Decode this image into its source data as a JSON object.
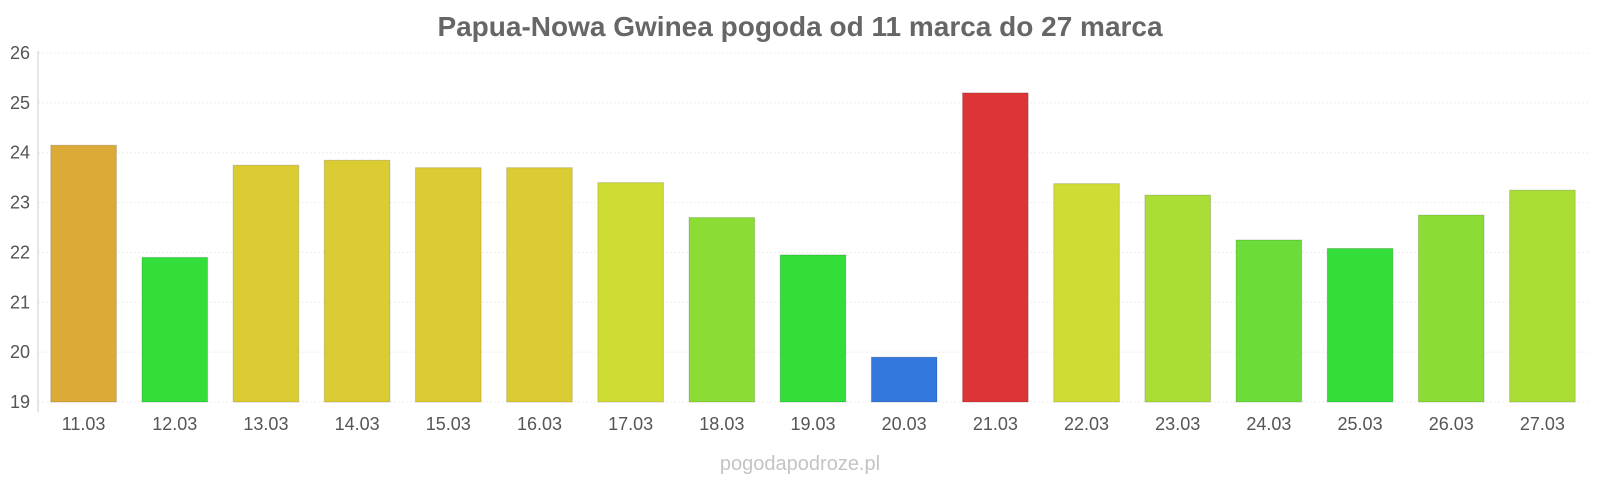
{
  "chart_data": {
    "type": "bar",
    "title": "Papua-Nowa Gwinea pogoda od 11 marca do 27 marca",
    "xlabel": "",
    "ylabel": "",
    "categories": [
      "11.03",
      "12.03",
      "13.03",
      "14.03",
      "15.03",
      "16.03",
      "17.03",
      "18.03",
      "19.03",
      "20.03",
      "21.03",
      "22.03",
      "23.03",
      "24.03",
      "25.03",
      "26.03",
      "27.03"
    ],
    "values": [
      24.15,
      21.9,
      23.75,
      23.85,
      23.7,
      23.7,
      23.4,
      22.7,
      21.95,
      19.9,
      25.2,
      23.38,
      23.15,
      22.25,
      22.08,
      22.75,
      23.25
    ],
    "colors": [
      "#dcaa36",
      "#33dd3a",
      "#dccc33",
      "#dccc33",
      "#dccc33",
      "#dccc33",
      "#cfdc33",
      "#8cdc36",
      "#33dd3a",
      "#3377dd",
      "#dd3535",
      "#cfdc33",
      "#aadd36",
      "#6cdc38",
      "#33dd3a",
      "#8cdc36",
      "#aadd36"
    ],
    "ylim": [
      19,
      26
    ],
    "yticks": [
      19,
      20,
      21,
      22,
      23,
      24,
      25,
      26
    ],
    "grid": true,
    "legend": "none"
  },
  "watermark": "pogodapodroze.pl"
}
